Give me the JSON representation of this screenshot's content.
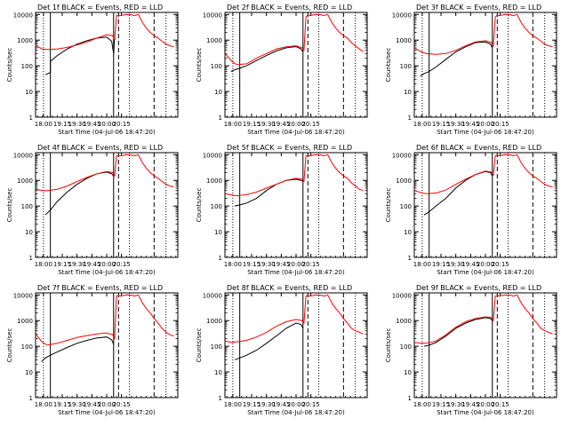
{
  "figure": {
    "ylabel": "Counts/sec",
    "xlabel": "Start Time (04-Jul-06 18:47:20)",
    "x_tick_labels": [
      "18:00",
      "19:15",
      "19:30",
      "19:45",
      "20:00",
      "20:15"
    ],
    "y_tick_labels": [
      "1",
      "10",
      "100",
      "1000",
      "10000"
    ],
    "legend_text": "BLACK = Events, RED = LLD",
    "colors": {
      "events": "#000000",
      "lld": "#ff0000",
      "axes": "#000000"
    }
  },
  "chart_data": [
    {
      "type": "line",
      "title": "Det 1f",
      "ylabel": "Counts/sec",
      "xlabel": "Start Time (04-Jul-06 18:47:20)",
      "x_unit": "minutes from 18:47:20",
      "yscale": "log",
      "xlim": [
        -52,
        92
      ],
      "ylim": [
        1,
        12000
      ],
      "vlines": {
        "dotted": [
          -44,
          43,
          80
        ],
        "solid": [
          -37,
          27
        ],
        "dashed": [
          32,
          68
        ]
      },
      "series": [
        {
          "name": "BLACK = Events",
          "x": [
            -42,
            -37,
            -37,
            -30,
            -20,
            -10,
            0,
            10,
            20,
            25,
            27,
            28
          ],
          "y": [
            45,
            55,
            150,
            250,
            450,
            700,
            950,
            1200,
            1300,
            900,
            300,
            1200
          ]
        },
        {
          "name": "RED = LLD",
          "x": [
            -52,
            -45,
            -40,
            -30,
            -20,
            -10,
            0,
            10,
            20,
            26,
            28,
            30,
            32,
            34,
            40,
            45,
            48,
            52,
            56,
            60,
            64,
            68,
            72,
            76,
            80,
            84,
            88
          ],
          "y": [
            600,
            450,
            430,
            450,
            520,
            650,
            850,
            1200,
            1600,
            1500,
            1000,
            9000,
            9500,
            9000,
            10000,
            9800,
            9000,
            10000,
            5000,
            3000,
            2000,
            1500,
            1200,
            900,
            700,
            600,
            550
          ]
        }
      ]
    },
    {
      "type": "line",
      "title": "Det 2f",
      "ylabel": "Counts/sec",
      "xlabel": "Start Time (04-Jul-06 18:47:20)",
      "x_unit": "minutes from 18:47:20",
      "yscale": "log",
      "xlim": [
        -52,
        92
      ],
      "ylim": [
        1,
        12000
      ],
      "vlines": {
        "dotted": [
          -44,
          43,
          80
        ],
        "solid": [
          -37,
          27
        ],
        "dashed": [
          32,
          68
        ]
      },
      "series": [
        {
          "name": "BLACK = Events",
          "x": [
            -46,
            -42,
            -37,
            -30,
            -20,
            -10,
            0,
            10,
            20,
            25,
            27
          ],
          "y": [
            60,
            70,
            80,
            100,
            160,
            250,
            380,
            500,
            560,
            450,
            350
          ]
        },
        {
          "name": "RED = LLD",
          "x": [
            -52,
            -45,
            -40,
            -30,
            -20,
            -10,
            0,
            10,
            20,
            26,
            28,
            30,
            32,
            34,
            40,
            45,
            48,
            52,
            56,
            60,
            64,
            68,
            72,
            76,
            80,
            84,
            88
          ],
          "y": [
            300,
            150,
            110,
            120,
            200,
            300,
            450,
            550,
            600,
            500,
            400,
            8000,
            9500,
            9000,
            10000,
            9800,
            9000,
            10000,
            5000,
            3000,
            2000,
            1500,
            1200,
            800,
            600,
            450,
            350
          ]
        }
      ]
    },
    {
      "type": "line",
      "title": "Det 3f",
      "ylabel": "Counts/sec",
      "xlabel": "Start Time (04-Jul-06 18:47:20)",
      "x_unit": "minutes from 18:47:20",
      "yscale": "log",
      "xlim": [
        -52,
        92
      ],
      "ylim": [
        1,
        12000
      ],
      "vlines": {
        "dotted": [
          -44,
          43,
          80
        ],
        "solid": [
          -37,
          27
        ],
        "dashed": [
          32,
          68
        ]
      },
      "series": [
        {
          "name": "BLACK = Events",
          "x": [
            -46,
            -42,
            -37,
            -30,
            -20,
            -10,
            0,
            10,
            20,
            25,
            27
          ],
          "y": [
            40,
            50,
            60,
            90,
            180,
            350,
            550,
            800,
            850,
            700,
            500
          ]
        },
        {
          "name": "RED = LLD",
          "x": [
            -52,
            -45,
            -40,
            -30,
            -20,
            -10,
            0,
            10,
            20,
            26,
            28,
            30,
            32,
            34,
            40,
            45,
            48,
            52,
            56,
            60,
            64,
            68,
            72,
            76,
            80,
            84,
            88
          ],
          "y": [
            500,
            350,
            300,
            280,
            300,
            400,
            600,
            850,
            950,
            800,
            600,
            8000,
            9500,
            9000,
            10000,
            9800,
            9000,
            10000,
            5000,
            3000,
            2000,
            1500,
            1200,
            900,
            700,
            600,
            550
          ]
        }
      ]
    },
    {
      "type": "line",
      "title": "Det 4f",
      "ylabel": "Counts/sec",
      "xlabel": "Start Time (04-Jul-06 18:47:20)",
      "x_unit": "minutes from 18:47:20",
      "yscale": "log",
      "xlim": [
        -52,
        92
      ],
      "ylim": [
        1,
        12000
      ],
      "vlines": {
        "dotted": [
          -44,
          43,
          80
        ],
        "solid": [
          -37,
          27
        ],
        "dashed": [
          32,
          68
        ]
      },
      "series": [
        {
          "name": "BLACK = Events",
          "x": [
            -42,
            -37,
            -30,
            -20,
            -10,
            0,
            10,
            20,
            25,
            27
          ],
          "y": [
            45,
            70,
            150,
            350,
            700,
            1200,
            1800,
            2100,
            1800,
            1500
          ]
        },
        {
          "name": "RED = LLD",
          "x": [
            -52,
            -45,
            -40,
            -30,
            -20,
            -10,
            0,
            10,
            20,
            26,
            28,
            30,
            32,
            34,
            40,
            45,
            48,
            52,
            56,
            60,
            64,
            68,
            72,
            76,
            80,
            84,
            88
          ],
          "y": [
            450,
            400,
            400,
            450,
            600,
            900,
            1300,
            1800,
            2200,
            2000,
            1500,
            9000,
            9500,
            9000,
            10000,
            9800,
            9000,
            10000,
            5000,
            3000,
            2000,
            1500,
            1200,
            900,
            700,
            600,
            550
          ]
        }
      ]
    },
    {
      "type": "line",
      "title": "Det 5f",
      "ylabel": "Counts/sec",
      "xlabel": "Start Time (04-Jul-06 18:47:20)",
      "x_unit": "minutes from 18:47:20",
      "yscale": "log",
      "xlim": [
        -52,
        92
      ],
      "ylim": [
        1,
        12000
      ],
      "vlines": {
        "dotted": [
          -44,
          43,
          80
        ],
        "solid": [
          -37,
          27
        ],
        "dashed": [
          32,
          68
        ]
      },
      "series": [
        {
          "name": "BLACK = Events",
          "x": [
            -42,
            -37,
            -30,
            -20,
            -10,
            0,
            10,
            20,
            25,
            27
          ],
          "y": [
            100,
            110,
            130,
            200,
            400,
            700,
            1000,
            1100,
            1000,
            900
          ]
        },
        {
          "name": "RED = LLD",
          "x": [
            -52,
            -45,
            -40,
            -30,
            -20,
            -10,
            0,
            10,
            20,
            26,
            28,
            30,
            32,
            34,
            40,
            45,
            48,
            52,
            56,
            60,
            64,
            68,
            72,
            76,
            80,
            84,
            88
          ],
          "y": [
            300,
            270,
            250,
            280,
            350,
            500,
            700,
            1000,
            1200,
            1100,
            900,
            9000,
            9500,
            9000,
            10000,
            9800,
            9000,
            10000,
            5000,
            3000,
            2000,
            1500,
            1200,
            800,
            600,
            450,
            400
          ]
        }
      ]
    },
    {
      "type": "line",
      "title": "Det 6f",
      "ylabel": "Counts/sec",
      "xlabel": "Start Time (04-Jul-06 18:47:20)",
      "x_unit": "minutes from 18:47:20",
      "yscale": "log",
      "xlim": [
        -52,
        92
      ],
      "ylim": [
        1,
        12000
      ],
      "vlines": {
        "dotted": [
          -44,
          43,
          80
        ],
        "solid": [
          -37,
          27
        ],
        "dashed": [
          32,
          68
        ]
      },
      "series": [
        {
          "name": "BLACK = Events",
          "x": [
            -42,
            -37,
            -30,
            -20,
            -10,
            0,
            10,
            20,
            25,
            27
          ],
          "y": [
            45,
            60,
            100,
            200,
            500,
            1000,
            1700,
            2200,
            2000,
            1500
          ]
        },
        {
          "name": "RED = LLD",
          "x": [
            -52,
            -45,
            -40,
            -30,
            -20,
            -10,
            0,
            10,
            20,
            26,
            28,
            30,
            32,
            34,
            40,
            45,
            48,
            52,
            56,
            60,
            64,
            68,
            72,
            76,
            80,
            84,
            88
          ],
          "y": [
            400,
            330,
            300,
            320,
            420,
            700,
            1100,
            1700,
            2300,
            2100,
            1600,
            9000,
            9500,
            9000,
            10000,
            9800,
            9000,
            10000,
            5000,
            3000,
            2000,
            1500,
            1200,
            900,
            700,
            600,
            550
          ]
        }
      ]
    },
    {
      "type": "line",
      "title": "Det 7f",
      "ylabel": "Counts/sec",
      "xlabel": "Start Time (04-Jul-06 18:47:20)",
      "x_unit": "minutes from 18:47:20",
      "yscale": "log",
      "xlim": [
        -52,
        92
      ],
      "ylim": [
        1,
        12000
      ],
      "vlines": {
        "dotted": [
          -44,
          43,
          80
        ],
        "solid": [
          -37,
          27
        ],
        "dashed": [
          32,
          68
        ]
      },
      "series": [
        {
          "name": "BLACK = Events",
          "x": [
            -46,
            -42,
            -37,
            -30,
            -20,
            -10,
            0,
            10,
            20,
            25,
            27
          ],
          "y": [
            25,
            35,
            45,
            60,
            90,
            130,
            170,
            210,
            230,
            180,
            120
          ]
        },
        {
          "name": "RED = LLD",
          "x": [
            -52,
            -45,
            -40,
            -30,
            -20,
            -10,
            0,
            10,
            20,
            26,
            28,
            30,
            32,
            34,
            40,
            45,
            48,
            52,
            56,
            60,
            64,
            68,
            72,
            76,
            80,
            84,
            88
          ],
          "y": [
            300,
            140,
            110,
            130,
            170,
            220,
            260,
            300,
            330,
            280,
            200,
            9000,
            9500,
            9000,
            10000,
            9800,
            9000,
            10000,
            5000,
            3000,
            2000,
            1200,
            800,
            500,
            350,
            280,
            250
          ]
        }
      ]
    },
    {
      "type": "line",
      "title": "Det 8f",
      "ylabel": "Counts/sec",
      "xlabel": "Start Time (04-Jul-06 18:47:20)",
      "x_unit": "minutes from 18:47:20",
      "yscale": "log",
      "xlim": [
        -52,
        92
      ],
      "ylim": [
        1,
        12000
      ],
      "vlines": {
        "dotted": [
          -44,
          43,
          80
        ],
        "solid": [
          -37,
          27
        ],
        "dashed": [
          32,
          68
        ]
      },
      "series": [
        {
          "name": "BLACK = Events",
          "x": [
            -42,
            -37,
            -30,
            -20,
            -10,
            0,
            10,
            20,
            25,
            27
          ],
          "y": [
            30,
            35,
            45,
            70,
            130,
            250,
            500,
            800,
            700,
            500
          ]
        },
        {
          "name": "RED = LLD",
          "x": [
            -52,
            -45,
            -40,
            -30,
            -20,
            -10,
            0,
            10,
            20,
            26,
            28,
            30,
            32,
            34,
            40,
            45,
            48,
            52,
            56,
            60,
            64,
            68,
            72,
            76,
            80,
            84,
            88
          ],
          "y": [
            160,
            140,
            150,
            170,
            230,
            350,
            600,
            900,
            1100,
            1000,
            800,
            9000,
            9500,
            9000,
            10000,
            9800,
            9000,
            10000,
            5000,
            3000,
            2000,
            1200,
            800,
            500,
            400,
            350,
            300
          ]
        }
      ]
    },
    {
      "type": "line",
      "title": "Det 9f",
      "ylabel": "Counts/sec",
      "xlabel": "Start Time (04-Jul-06 18:47:20)",
      "x_unit": "minutes from 18:47:20",
      "yscale": "log",
      "xlim": [
        -52,
        92
      ],
      "ylim": [
        1,
        12000
      ],
      "vlines": {
        "dotted": [
          -44,
          43,
          80
        ],
        "solid": [
          -37,
          27
        ],
        "dashed": [
          32,
          68
        ]
      },
      "series": [
        {
          "name": "BLACK = Events",
          "x": [
            -42,
            -37,
            -30,
            -20,
            -10,
            0,
            10,
            20,
            25,
            27
          ],
          "y": [
            100,
            110,
            140,
            250,
            500,
            800,
            1100,
            1300,
            1200,
            1000
          ]
        },
        {
          "name": "RED = LLD",
          "x": [
            -52,
            -45,
            -40,
            -30,
            -20,
            -10,
            0,
            10,
            20,
            26,
            28,
            30,
            32,
            34,
            40,
            45,
            48,
            52,
            56,
            60,
            64,
            68,
            72,
            76,
            80,
            84,
            88
          ],
          "y": [
            140,
            130,
            130,
            160,
            280,
            550,
            900,
            1200,
            1400,
            1300,
            1000,
            9000,
            9500,
            9000,
            10000,
            9800,
            9000,
            10000,
            5000,
            3000,
            2000,
            1200,
            800,
            500,
            400,
            350,
            300
          ]
        }
      ]
    }
  ]
}
